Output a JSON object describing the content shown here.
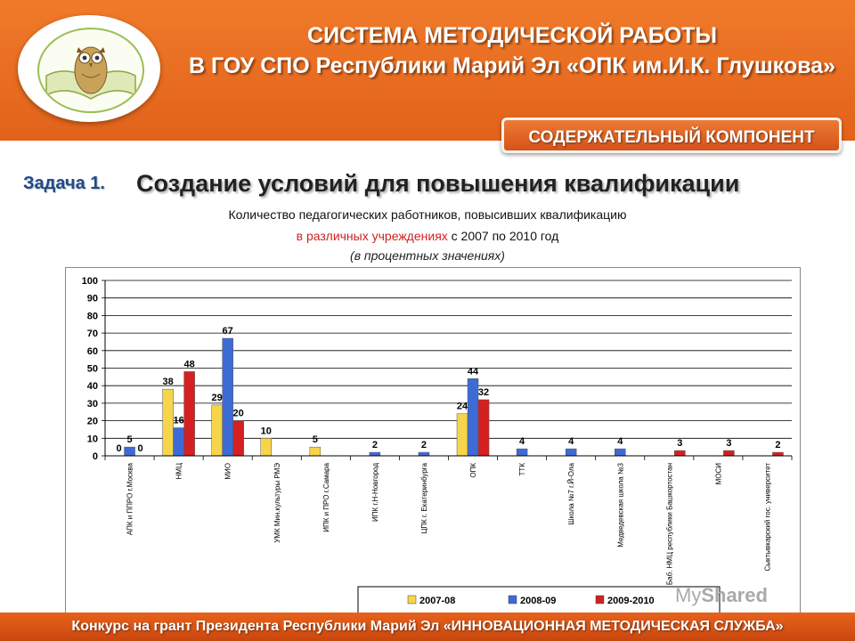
{
  "header": {
    "title_line1": "СИСТЕМА МЕТОДИЧЕСКОЙ РАБОТЫ",
    "title_line2": "В ГОУ СПО Республики Марий Эл «ОПК им.И.К. Глушкова»"
  },
  "badge": "СОДЕРЖАТЕЛЬНЫЙ КОМПОНЕНТ",
  "task": {
    "label": "Задача 1.",
    "title": "Создание условий для повышения квалификации"
  },
  "subtitle": {
    "line1": "Количество педагогических работников, повысивших квалификацию",
    "line2_red": "в различных учреждениях",
    "line2_rest": " с 2007 по 2010 год",
    "line3": "(в процентных значениях)"
  },
  "chart_data": {
    "type": "bar",
    "title": "",
    "xlabel": "",
    "ylabel": "",
    "ylim": [
      0,
      100
    ],
    "yticks": [
      0,
      10,
      20,
      30,
      40,
      50,
      60,
      70,
      80,
      90,
      100
    ],
    "grid": true,
    "legend_position": "bottom",
    "categories": [
      "АПК и ППРО г.Москва",
      "НМЦ",
      "МИО",
      "УМК Мин.культуры РМЭ",
      "ИПК и ПРО г.Самара",
      "ИПК г.Н-Новгород",
      "ЦПК г. Екатеринбурга",
      "ОПК",
      "ТТК",
      "Школа №7 г.Й-Ола",
      "Медведевская школа №3",
      "Баб. НМЦ республики Башкортостан",
      "МОСИ",
      "Сыктывкарский гос. университет"
    ],
    "series": [
      {
        "name": "2007-08",
        "color": "#f7d54a",
        "values": [
          0,
          38,
          29,
          10,
          5,
          null,
          null,
          24,
          null,
          null,
          null,
          null,
          null,
          null
        ]
      },
      {
        "name": "2008-09",
        "color": "#3d6bd6",
        "values": [
          5,
          16,
          67,
          null,
          null,
          2,
          2,
          44,
          4,
          4,
          4,
          null,
          null,
          null
        ]
      },
      {
        "name": "2009-2010",
        "color": "#d42020",
        "values": [
          0,
          48,
          20,
          null,
          null,
          null,
          null,
          32,
          null,
          null,
          null,
          3,
          3,
          2
        ]
      }
    ]
  },
  "footer": "Конкурс на грант Президента Республики Марий Эл «ИННОВАЦИОННАЯ МЕТОДИЧЕСКАЯ СЛУЖБА»",
  "watermark": {
    "prefix": "My",
    "brand": "Shared"
  }
}
